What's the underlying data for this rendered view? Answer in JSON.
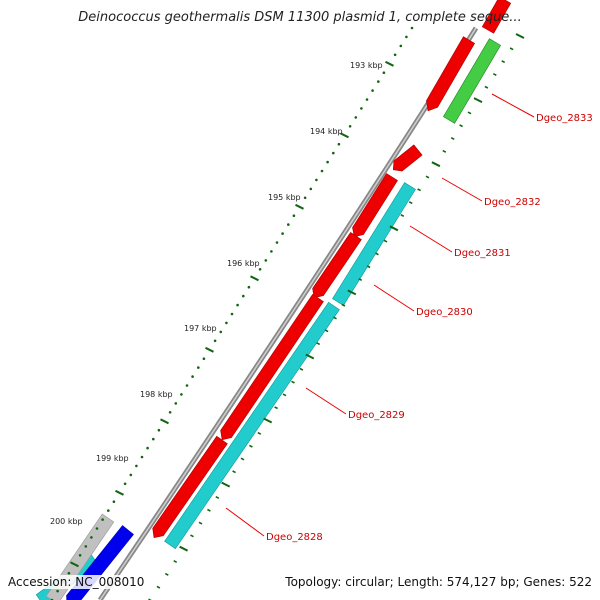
{
  "title": "Deinococcus geothermalis DSM 11300 plasmid 1, complete seque...",
  "accession": "Accession: NC_008010",
  "summary": "Topology: circular; Length: 574,127 bp; Genes: 522",
  "colors": {
    "backbone": "#888888",
    "forward_gene": "#ee0000",
    "reverse_gene": "#22cccc",
    "green_gene": "#44cc44",
    "blue_gene": "#0000ee",
    "gray_gene": "#c0c0c0",
    "tick": "#116611",
    "label": "#cc0000"
  },
  "scale_ticks": [
    {
      "label": "193 kbp"
    },
    {
      "label": "194 kbp"
    },
    {
      "label": "195 kbp"
    },
    {
      "label": "196 kbp"
    },
    {
      "label": "197 kbp"
    },
    {
      "label": "198 kbp"
    },
    {
      "label": "199 kbp"
    },
    {
      "label": "200 kbp"
    }
  ],
  "gene_labels": [
    {
      "label": "Dgeo_2833"
    },
    {
      "label": "Dgeo_2832"
    },
    {
      "label": "Dgeo_2831"
    },
    {
      "label": "Dgeo_2830"
    },
    {
      "label": "Dgeo_2829"
    },
    {
      "label": "Dgeo_2828"
    }
  ]
}
